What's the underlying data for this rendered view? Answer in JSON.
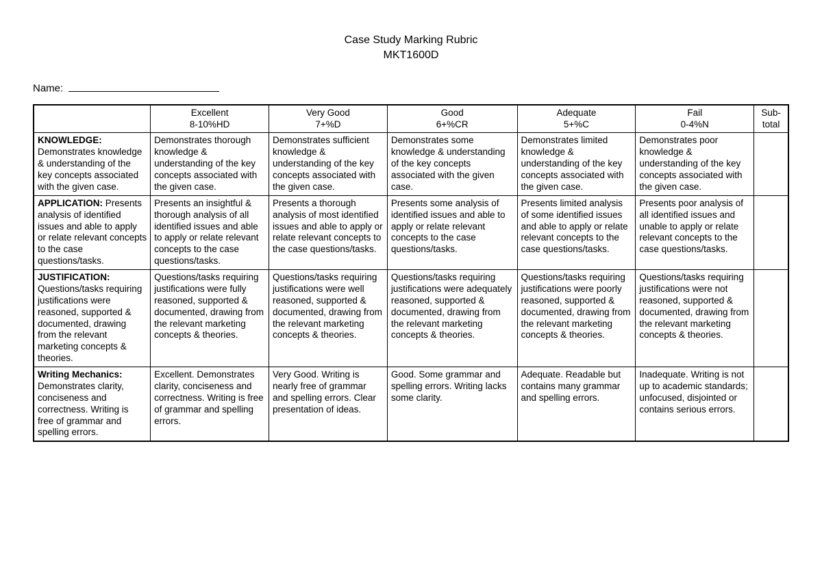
{
  "header": {
    "title_line1": "Case Study Marking Rubric",
    "title_line2": "MKT1600D",
    "name_label": "Name:"
  },
  "columns": {
    "criteria": "",
    "excellent_line1": "Excellent",
    "excellent_line2": "8-10%HD",
    "verygood_line1": "Very Good",
    "verygood_line2": "7+%D",
    "good_line1": "Good",
    "good_line2": "6+%CR",
    "adequate_line1": "Adequate",
    "adequate_line2": "5+%C",
    "fail_line1": "Fail",
    "fail_line2": "0-4%N",
    "subtotal_line1": "Sub-",
    "subtotal_line2": "total"
  },
  "rows": {
    "knowledge": {
      "title": "KNOWLEDGE:",
      "desc": "Demonstrates knowledge & understanding of the key concepts associated with the given case.",
      "excellent": "Demonstrates thorough knowledge & understanding of the key concepts associated with the given case.",
      "verygood": "Demonstrates sufficient knowledge & understanding of the key concepts associated with the given case.",
      "good": "Demonstrates some knowledge & understanding of the key concepts associated with the given case.",
      "adequate": "Demonstrates limited knowledge & understanding of the key concepts associated with the given case.",
      "fail": "Demonstrates poor knowledge & understanding of the key concepts associated with the given case.",
      "subtotal": ""
    },
    "application": {
      "title": "APPLICATION:",
      "desc": "Presents analysis of identified issues and able to apply or relate relevant concepts to the case questions/tasks.",
      "excellent": "Presents an insightful & thorough analysis of all identified issues and able to apply or relate relevant concepts to the case questions/tasks.",
      "verygood": "Presents a thorough analysis of most identified issues and able to apply or relate relevant concepts to the case questions/tasks.",
      "good": "Presents some analysis of identified issues and able to apply or relate relevant concepts to the case questions/tasks.",
      "adequate": "Presents limited analysis of some identified issues and able to apply or relate relevant concepts to the case questions/tasks.",
      "fail": "Presents poor analysis of all identified issues and unable to apply or relate relevant concepts to the case questions/tasks.",
      "subtotal": ""
    },
    "justification": {
      "title": "JUSTIFICATION:",
      "desc": "Questions/tasks requiring justifications were reasoned, supported & documented, drawing from the relevant marketing concepts & theories.",
      "excellent": "Questions/tasks requiring justifications were fully reasoned, supported & documented, drawing from the relevant marketing concepts & theories.",
      "verygood": "Questions/tasks requiring justifications were well reasoned, supported & documented, drawing from the relevant marketing concepts & theories.",
      "good": "Questions/tasks requiring justifications were adequately reasoned, supported & documented, drawing from the relevant marketing concepts & theories.",
      "adequate": "Questions/tasks requiring justifications were poorly reasoned, supported & documented, drawing from the relevant marketing concepts & theories.",
      "fail": "Questions/tasks requiring justifications were not reasoned, supported & documented, drawing from the relevant marketing concepts & theories.",
      "subtotal": ""
    },
    "writing": {
      "title": "Writing Mechanics:",
      "desc": "Demonstrates clarity, conciseness and correctness. Writing is free of grammar and spelling errors.",
      "excellent": "Excellent. Demonstrates clarity, conciseness and correctness. Writing is free of grammar and spelling errors.",
      "verygood": "Very Good. Writing is nearly free of grammar and spelling errors. Clear presentation of ideas.",
      "good": "Good. Some grammar and spelling errors. Writing lacks some clarity.",
      "adequate": "Adequate. Readable but contains many grammar and spelling errors.",
      "fail": "Inadequate. Writing is not up to academic standards; unfocused, disjointed or contains serious errors.",
      "subtotal": ""
    }
  }
}
